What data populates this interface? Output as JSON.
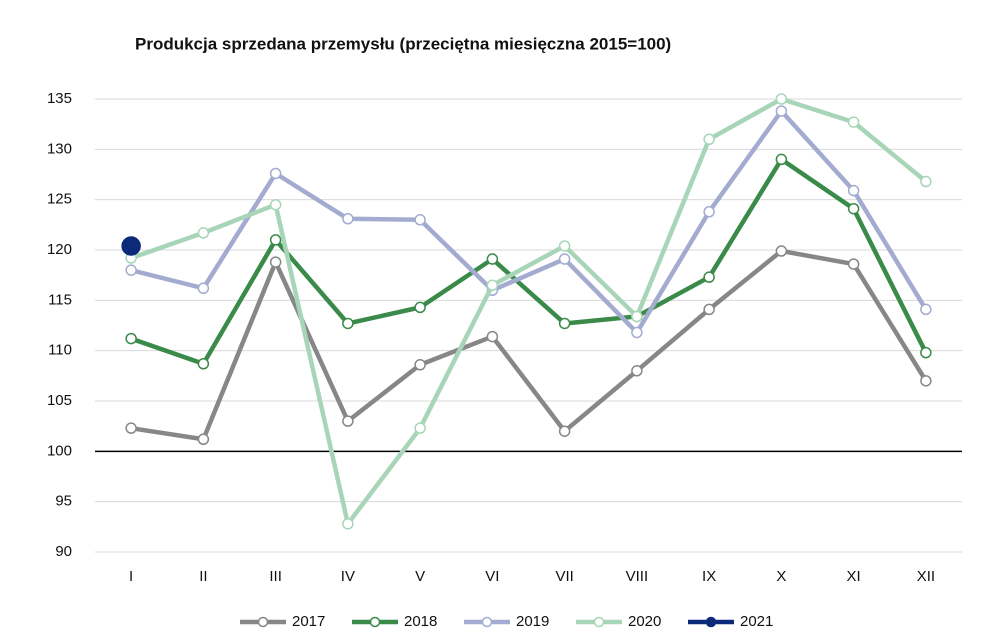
{
  "chart_data": {
    "type": "line",
    "title": "Produkcja sprzedana przemysłu (przeciętna miesięczna 2015=100)",
    "categories": [
      "I",
      "II",
      "III",
      "IV",
      "V",
      "VI",
      "VII",
      "VIII",
      "IX",
      "X",
      "XI",
      "XII"
    ],
    "series": [
      {
        "name": "2017",
        "color": "#878787",
        "values": [
          102.3,
          101.2,
          118.8,
          103.0,
          108.6,
          111.4,
          102.0,
          108.0,
          114.1,
          119.9,
          118.6,
          107.0
        ]
      },
      {
        "name": "2018",
        "color": "#3a8a4a",
        "values": [
          111.2,
          108.7,
          121.0,
          112.7,
          114.3,
          119.1,
          112.7,
          113.4,
          117.3,
          129.0,
          124.1,
          109.8
        ]
      },
      {
        "name": "2019",
        "color": "#a3acd0",
        "values": [
          118.0,
          116.2,
          127.6,
          123.1,
          123.0,
          116.0,
          119.1,
          111.8,
          123.8,
          133.8,
          125.9,
          114.1
        ]
      },
      {
        "name": "2020",
        "color": "#a8d5b8",
        "values": [
          119.2,
          121.7,
          124.5,
          92.8,
          102.3,
          116.5,
          120.4,
          113.4,
          131.0,
          135.0,
          132.7,
          126.8
        ]
      },
      {
        "name": "2021",
        "color": "#0b2a7a",
        "marker_filled": true,
        "values": [
          120.4,
          null,
          null,
          null,
          null,
          null,
          null,
          null,
          null,
          null,
          null,
          null
        ]
      }
    ],
    "ylim": [
      90,
      135
    ],
    "yticks": [
      90,
      95,
      100,
      105,
      110,
      115,
      120,
      125,
      130,
      135
    ],
    "grid": true,
    "reference_line": 100,
    "legend": "bottom"
  }
}
